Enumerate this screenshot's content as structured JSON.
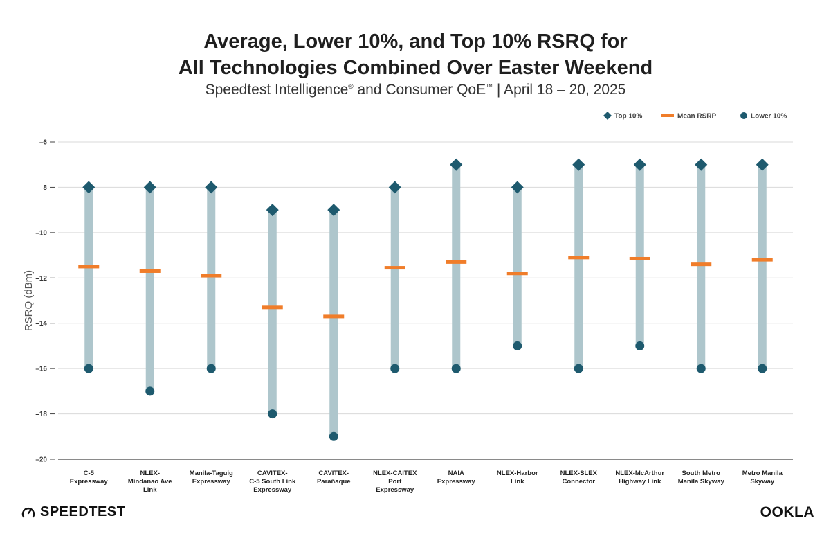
{
  "title_line1": "Average, Lower 10%, and Top 10% RSRQ for",
  "title_line2": "All Technologies Combined Over Easter Weekend",
  "subtitle_main": "Speedtest Intelligence",
  "subtitle_reg": "®",
  "subtitle_mid": " and Consumer QoE",
  "subtitle_tm": "™",
  "subtitle_tail": " | April 18 – 20, 2025",
  "brand_left": "SPEEDTEST",
  "brand_right": "OOKLA",
  "colors": {
    "top": "#1e5a6e",
    "lower": "#1e5a6e",
    "mean": "#f07d2a",
    "range_bar": "#aec6cc",
    "grid": "#d9d9d9",
    "axis": "#555555"
  },
  "chart_data": {
    "type": "range-dot",
    "xlabel": "",
    "ylabel": "RSRQ (dBm)",
    "ylim": [
      -20,
      -6
    ],
    "yticks": [
      -6,
      -8,
      -10,
      -12,
      -14,
      -16,
      -18,
      -20
    ],
    "ytick_labels": [
      "–6",
      "–8",
      "–10",
      "–12",
      "–14",
      "–16",
      "–18",
      "–20"
    ],
    "grid": true,
    "legend_position": "top-right",
    "legend": [
      {
        "key": "top",
        "label": "Top 10%",
        "marker": "diamond"
      },
      {
        "key": "mean",
        "label": "Mean RSRP",
        "marker": "dash"
      },
      {
        "key": "lower",
        "label": "Lower 10%",
        "marker": "circle"
      }
    ],
    "categories": [
      [
        "C-5",
        "Expressway"
      ],
      [
        "NLEX-",
        "Mindanao Ave",
        "Link"
      ],
      [
        "Manila-Taguig",
        "Expressway"
      ],
      [
        "CAVITEX-",
        "C-5 South Link",
        "Expressway"
      ],
      [
        "CAVITEX-",
        "Parañaque"
      ],
      [
        "NLEX-CAITEX",
        "Port",
        "Expressway"
      ],
      [
        "NAIA",
        "Expressway"
      ],
      [
        "NLEX-Harbor",
        "Link"
      ],
      [
        "NLEX-SLEX",
        "Connector"
      ],
      [
        "NLEX-McArthur",
        "Highway Link"
      ],
      [
        "South Metro",
        "Manila Skyway"
      ],
      [
        "Metro Manila",
        "Skyway"
      ]
    ],
    "series": [
      {
        "name": "Top 10%",
        "key": "top",
        "values": [
          -8,
          -8,
          -8,
          -9,
          -9,
          -8,
          -7,
          -8,
          -7,
          -7,
          -7,
          -7
        ]
      },
      {
        "name": "Mean RSRP",
        "key": "mean",
        "values": [
          -11.5,
          -11.7,
          -11.9,
          -13.3,
          -13.7,
          -11.55,
          -11.3,
          -11.8,
          -11.1,
          -11.15,
          -11.4,
          -11.2
        ]
      },
      {
        "name": "Lower 10%",
        "key": "lower",
        "values": [
          -16,
          -17,
          -16,
          -18,
          -19,
          -16,
          -16,
          -15,
          -16,
          -15,
          -16,
          -16
        ]
      }
    ]
  }
}
